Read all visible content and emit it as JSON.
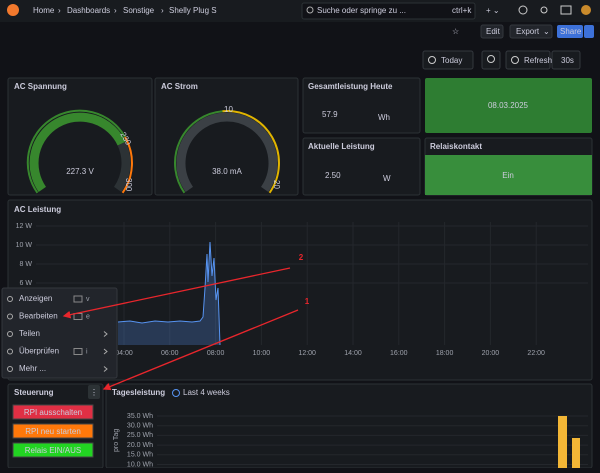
{
  "topbar": {
    "breadcrumb": [
      "Home",
      "Dashboards",
      "Sonstige",
      "Shelly Plug S"
    ],
    "search": "Suche oder springe zu ...",
    "shortcut": "ctrl+k"
  },
  "toolbar": {
    "edit": "Edit",
    "export": "Export",
    "share": "Share"
  },
  "timebar": {
    "range": "Today",
    "refresh": "Refresh",
    "interval": "30s"
  },
  "panels": {
    "ac_spannung": {
      "title": "AC Spannung",
      "value": "227.3 V",
      "ticks": [
        "230",
        "300"
      ]
    },
    "ac_strom": {
      "title": "AC Strom",
      "value": "38.0 mA",
      "ticks": [
        "10",
        "20"
      ]
    },
    "gesamtleistung": {
      "title": "Gesamtleistung Heute",
      "value": "57.9",
      "unit": "Wh"
    },
    "datum": {
      "value": "08.03.2025"
    },
    "aktuelle_leistung": {
      "title": "Aktuelle Leistung",
      "value": "2.50",
      "unit": "W"
    },
    "relaiskontakt": {
      "title": "Relaiskontakt",
      "value": "Ein"
    },
    "ac_leistung": {
      "title": "AC Leistung",
      "yticks": [
        "12 W",
        "10 W",
        "8 W",
        "6 W"
      ],
      "xticks": [
        "04:00",
        "06:00",
        "08:00",
        "10:00",
        "12:00",
        "14:00",
        "16:00",
        "18:00",
        "20:00",
        "22:00"
      ]
    },
    "steuerung": {
      "title": "Steuerung",
      "buttons": [
        "RPI ausschalten",
        "RPI neu starten",
        "Relais EIN/AUS"
      ]
    },
    "tagesleistung": {
      "title": "Tagesleistung",
      "range": "Last 4 weeks",
      "yticks": [
        "35.0 Wh",
        "30.0 Wh",
        "25.0 Wh",
        "20.0 Wh",
        "15.0 Wh",
        "10.0 Wh"
      ],
      "ylabel": "pro Tag"
    }
  },
  "menu": {
    "items": [
      {
        "label": "Anzeigen",
        "key": "v"
      },
      {
        "label": "Bearbeiten",
        "key": "e"
      },
      {
        "label": "Teilen"
      },
      {
        "label": "Überprüfen",
        "key": "i"
      },
      {
        "label": "Mehr ..."
      }
    ]
  },
  "annotations": [
    "1",
    "2"
  ]
}
